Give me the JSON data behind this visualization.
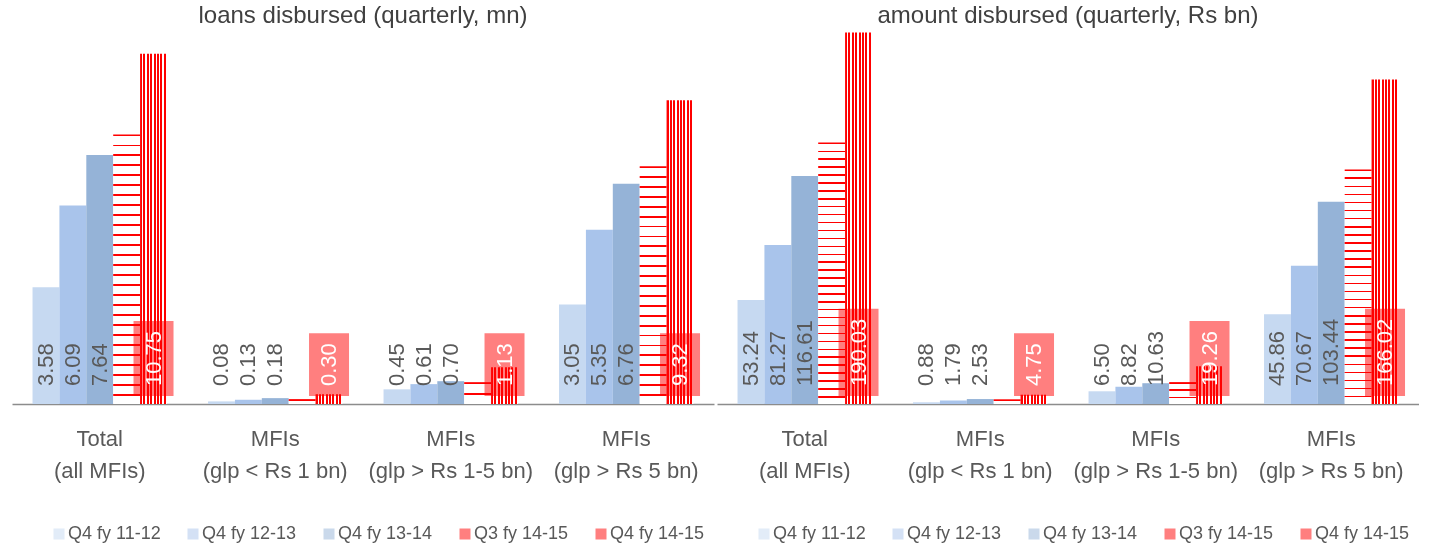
{
  "chart_data": [
    {
      "type": "bar",
      "title": "loans disbursed (quarterly, mn)",
      "categories": [
        "Total\n(all MFIs)",
        "MFIs\n(glp < Rs 1 bn)",
        "MFIs\n(glp > Rs 1-5 bn)",
        "MFIs\n(glp > Rs 5 bn)"
      ],
      "series": [
        {
          "name": "Q4 fy 11-12",
          "color": "#c6d9f1",
          "values": [
            3.58,
            0.08,
            0.45,
            3.05
          ],
          "value_labels": [
            "3.58",
            "0.08",
            "0.45",
            "3.05"
          ]
        },
        {
          "name": "Q4 fy 12-13",
          "color": "#a9c4eb",
          "values": [
            6.09,
            0.13,
            0.61,
            5.35
          ],
          "value_labels": [
            "6.09",
            "0.13",
            "0.61",
            "5.35"
          ]
        },
        {
          "name": "Q4 fy 13-14",
          "color": "#95b3d7",
          "values": [
            7.64,
            0.18,
            0.7,
            6.76
          ],
          "value_labels": [
            "7.64",
            "0.18",
            "0.70",
            "6.76"
          ]
        },
        {
          "name": "Q3 fy 14-15",
          "color": "#ff0000",
          "values": [
            8.27,
            0.15,
            0.67,
            7.3
          ]
        },
        {
          "name": "Q4 fy 14-15",
          "color": "#ff0000",
          "values": [
            10.75,
            0.3,
            1.13,
            9.32
          ],
          "value_labels": [
            "10.75",
            "0.30",
            "1.13",
            "9.32"
          ]
        }
      ],
      "legend": "bottom",
      "tick_labels": "x"
    },
    {
      "type": "bar",
      "title": "amount disbursed (quarterly, Rs bn)",
      "categories": [
        "Total\n(all MFIs)",
        "MFIs\n(glp < Rs 1 bn)",
        "MFIs\n(glp > Rs 1-5 bn)",
        "MFIs\n(glp > Rs 5 bn)"
      ],
      "series": [
        {
          "name": "Q4 fy 11-12",
          "color": "#c6d9f1",
          "values": [
            53.24,
            0.88,
            6.5,
            45.86
          ],
          "value_labels": [
            "53.24",
            "0.88",
            "6.50",
            "45.86"
          ]
        },
        {
          "name": "Q4 fy 12-13",
          "color": "#a9c4eb",
          "values": [
            81.27,
            1.79,
            8.82,
            70.67
          ],
          "value_labels": [
            "81.27",
            "1.79",
            "8.82",
            "70.67"
          ]
        },
        {
          "name": "Q4 fy 13-14",
          "color": "#95b3d7",
          "values": [
            116.61,
            2.53,
            10.63,
            103.44
          ],
          "value_labels": [
            "116.61",
            "2.53",
            "10.63",
            "103.44"
          ]
        },
        {
          "name": "Q3 fy 14-15",
          "color": "#ff0000",
          "values": [
            133.7,
            2.4,
            11.2,
            120.0
          ]
        },
        {
          "name": "Q4 fy 14-15",
          "color": "#ff0000",
          "values": [
            190.03,
            4.75,
            19.26,
            166.02
          ],
          "value_labels": [
            "190.03",
            "4.75",
            "19.26",
            "166.02"
          ]
        }
      ],
      "legend": "bottom",
      "tick_labels": "x"
    }
  ]
}
